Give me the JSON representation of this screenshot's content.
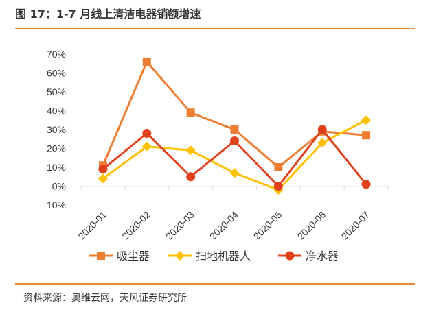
{
  "figure": {
    "title": "图 17：1-7 月线上清洁电器销额增速",
    "source": "资料来源：奥维云网，天风证券研究所"
  },
  "colors": {
    "accent_rule": "#e8893a",
    "axis": "#d9d9d9",
    "text": "#333333"
  },
  "chart_data": {
    "type": "line",
    "categories": [
      "2020-01",
      "2020-02",
      "2020-03",
      "2020-04",
      "2020-05",
      "2020-06",
      "2020-07"
    ],
    "yticks": [
      "70%",
      "60%",
      "50%",
      "40%",
      "30%",
      "20%",
      "10%",
      "0%",
      "-10%"
    ],
    "ylim": [
      -10,
      70
    ],
    "grid": false,
    "legend_position": "bottom",
    "series": [
      {
        "name": "吸尘器",
        "values": [
          11,
          66,
          39,
          30,
          10,
          29,
          27
        ],
        "color": "#ed7d31",
        "marker": "square"
      },
      {
        "name": "扫地机器人",
        "values": [
          4,
          21,
          19,
          7,
          -2,
          23,
          35
        ],
        "color": "#ffc000",
        "marker": "diamond"
      },
      {
        "name": "净水器",
        "values": [
          9,
          28,
          5,
          24,
          0,
          30,
          1
        ],
        "color": "#e0401b",
        "marker": "circle"
      }
    ]
  }
}
